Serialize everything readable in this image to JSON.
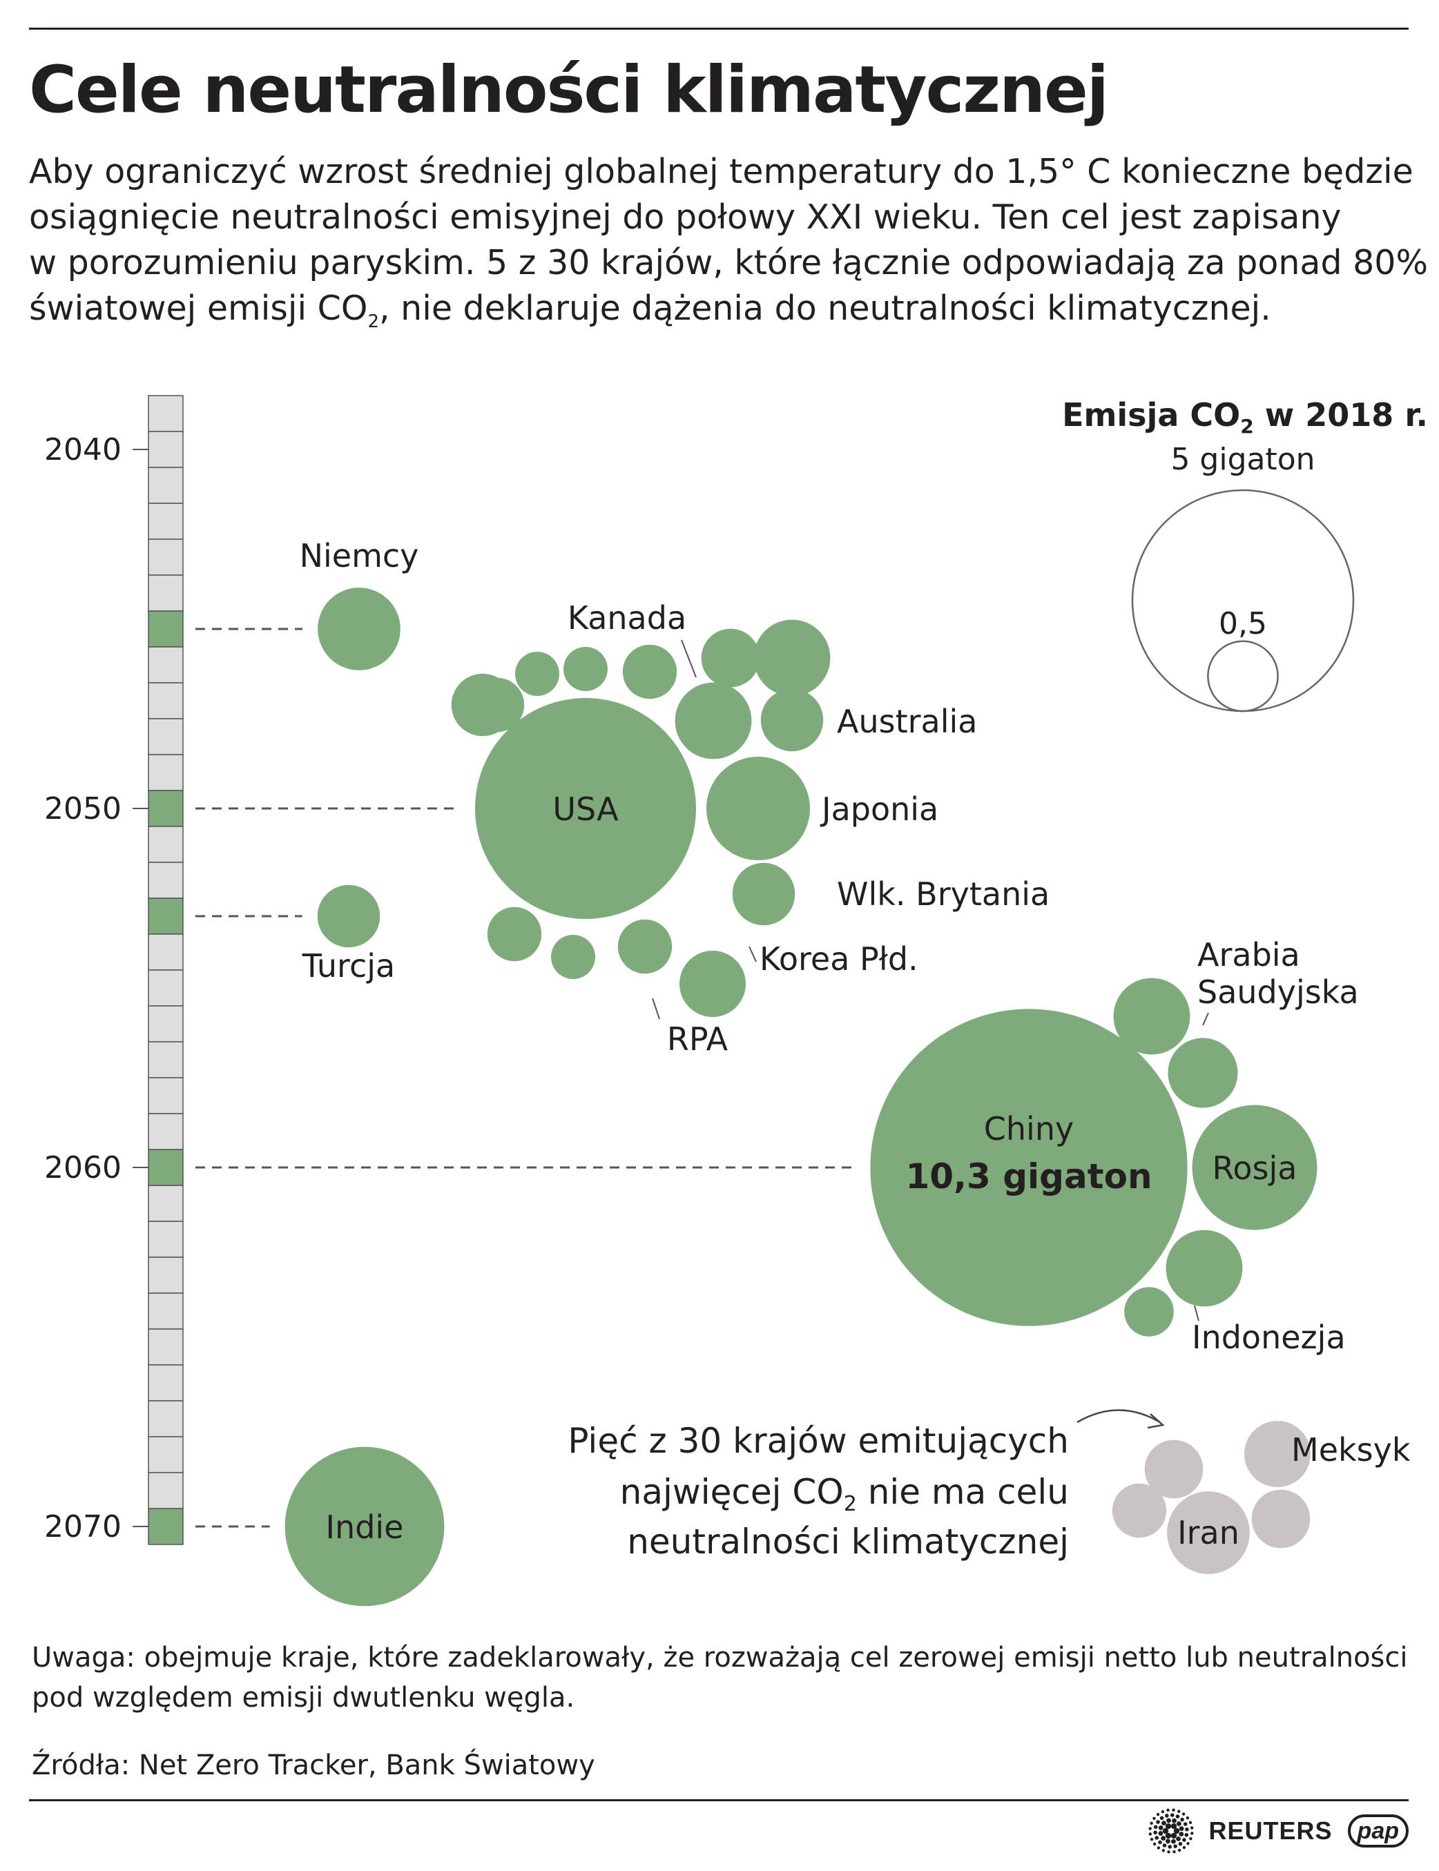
{
  "title": "Cele neutralności klimatycznej",
  "intro": {
    "line1": "Aby ograniczyć wzrost średniej globalnej temperatury do 1,5° C konieczne będzie",
    "line2": "osiągnięcie neutralności emisyjnej do połowy XXI wieku. Ten cel jest zapisany",
    "line3": "w porozumieniu paryskim. 5 z 30 krajów, które łącznie odpowiadają za ponad 80%",
    "line4_a": "światowej emisji CO",
    "line4_sub": "2",
    "line4_b": ", nie deklaruje dążenia do neutralności klimatycznej."
  },
  "legend": {
    "title_a": "Emisja CO",
    "title_sub": "2",
    "title_b": " w 2018 r.",
    "large_label": "5 gigaton",
    "large_value": 5,
    "small_label": "0,5",
    "small_value": 0.5
  },
  "chart_data": {
    "type": "bubble-timeline",
    "size_metric": "CO2 emissions in 2018 (gigatons), bubble area proportional to value",
    "timeline": {
      "min": 2039,
      "max": 2070,
      "ticks": [
        2040,
        2050,
        2060,
        2070
      ]
    },
    "highlighted_years": [
      2045,
      2050,
      2053,
      2060,
      2070
    ],
    "groups": [
      {
        "year": 2045,
        "countries": [
          {
            "name": "Niemcy",
            "value": 0.7
          }
        ]
      },
      {
        "year": 2050,
        "countries": [
          {
            "name": "USA",
            "value": 5.0
          },
          {
            "name": "Japonia",
            "value": 1.1
          },
          {
            "name": "Kanada",
            "value": 0.6
          },
          {
            "name": "Australia",
            "value": 0.4
          },
          {
            "name": "Wlk. Brytania",
            "value": 0.4
          },
          {
            "name": "Korea Płd.",
            "value": 0.6
          },
          {
            "name": "RPA",
            "value": 0.45
          },
          {
            "name": "",
            "value": 0.3
          },
          {
            "name": "",
            "value": 0.2
          },
          {
            "name": "",
            "value": 0.2
          },
          {
            "name": "",
            "value": 0.3
          },
          {
            "name": "",
            "value": 0.35
          },
          {
            "name": "",
            "value": 0.3
          },
          {
            "name": "",
            "value": 0.2
          },
          {
            "name": "",
            "value": 0.3
          },
          {
            "name": "",
            "value": 0.2
          },
          {
            "name": "",
            "value": 0.4
          }
        ]
      },
      {
        "year": 2053,
        "countries": [
          {
            "name": "Turcja",
            "value": 0.4
          }
        ]
      },
      {
        "year": 2060,
        "countries": [
          {
            "name": "Chiny",
            "value": 10.3,
            "value_label": "10,3 gigaton"
          },
          {
            "name": "Rosja",
            "value": 1.6
          },
          {
            "name": "Arabia Saudyjska",
            "value": 0.6
          },
          {
            "name": "Indonezja",
            "value": 0.6
          },
          {
            "name": "",
            "value": 0.5
          },
          {
            "name": "",
            "value": 0.25
          }
        ]
      },
      {
        "year": 2070,
        "countries": [
          {
            "name": "Indie",
            "value": 2.6
          }
        ]
      }
    ],
    "no_target": {
      "label_line1": "Pięć z 30 krajów emitujących",
      "label_line2a": "najwięcej CO",
      "label_line2_sub": "2",
      "label_line2b": " nie ma celu",
      "label_line3": "neutralności klimatycznej",
      "countries": [
        {
          "name": "Iran",
          "value": 0.7
        },
        {
          "name": "Meksyk",
          "value": 0.45
        },
        {
          "name": "",
          "value": 0.35
        },
        {
          "name": "",
          "value": 0.35
        },
        {
          "name": "",
          "value": 0.3
        }
      ]
    }
  },
  "colors": {
    "green": "#7fab7c",
    "gray_bubble": "#c9c4c3",
    "bar_cell": "#dedede",
    "ink": "#231f20"
  },
  "note": {
    "line1": "Uwaga: obejmuje kraje, które zadeklarowały, że rozważają cel zerowej emisji netto lub neutralności",
    "line2": "pod względem emisji dwutlenku węgla."
  },
  "source": "Źródła: Net Zero Tracker, Bank Światowy",
  "credits": {
    "agency1": "REUTERS",
    "agency2": "pap"
  }
}
